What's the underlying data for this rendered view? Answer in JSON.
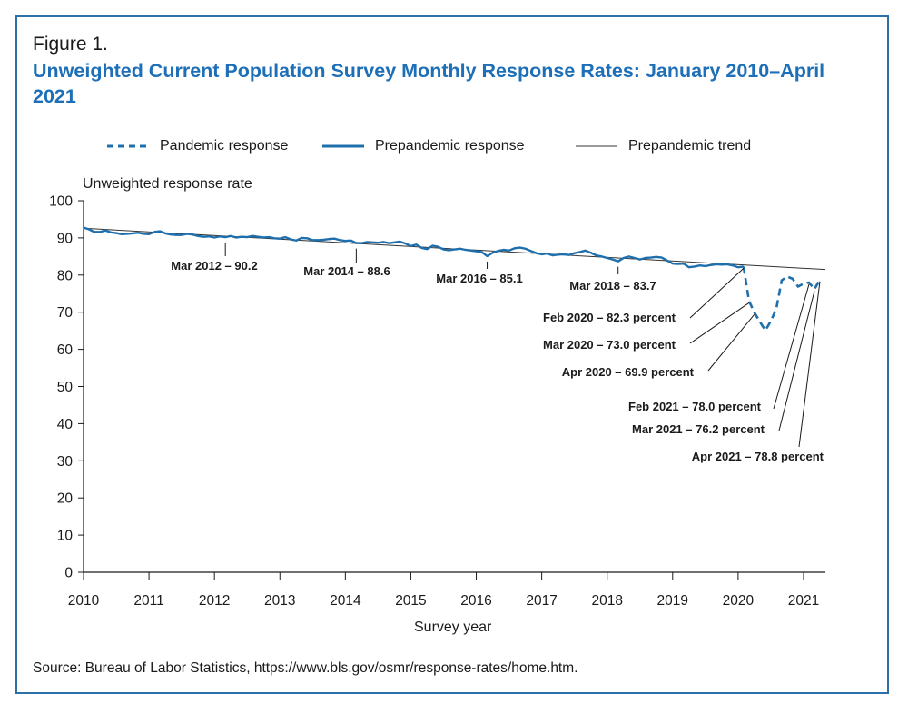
{
  "figure_label": "Figure 1.",
  "title": "Unweighted Current Population Survey Monthly Response Rates: January 2010–April 2021",
  "ylabel": "Unweighted response rate",
  "xlabel": "Survey year",
  "source": "Source: Bureau of Labor Statistics, https://www.bls.gov/osmr/response-rates/home.htm.",
  "colors": {
    "series": "#1f6fad",
    "trend": "#333333",
    "axis": "#1a1a1a",
    "title": "#1d6fb8",
    "frame": "#2d6fa7"
  },
  "chart_data": {
    "type": "line",
    "ylim": [
      0,
      100
    ],
    "xlim": [
      "2010-01",
      "2021-05"
    ],
    "y_ticks": [
      "0",
      "10",
      "20",
      "30",
      "40",
      "50",
      "60",
      "70",
      "80",
      "90",
      "100"
    ],
    "x_ticks": [
      "2010",
      "2011",
      "2012",
      "2013",
      "2014",
      "2015",
      "2016",
      "2017",
      "2018",
      "2019",
      "2020",
      "2021"
    ],
    "legend": {
      "placement": "top",
      "entries": [
        "Pandemic response",
        "Prepandemic response",
        "Prepandemic trend"
      ]
    },
    "series": [
      {
        "name": "Prepandemic response",
        "style": "solid",
        "x": [
          "2010-01",
          "2010-02",
          "2010-03",
          "2010-04",
          "2010-05",
          "2010-06",
          "2010-07",
          "2010-08",
          "2010-09",
          "2010-10",
          "2010-11",
          "2010-12",
          "2011-01",
          "2011-02",
          "2011-03",
          "2011-04",
          "2011-05",
          "2011-06",
          "2011-07",
          "2011-08",
          "2011-09",
          "2011-10",
          "2011-11",
          "2011-12",
          "2012-01",
          "2012-02",
          "2012-03",
          "2012-04",
          "2012-05",
          "2012-06",
          "2012-07",
          "2012-08",
          "2012-09",
          "2012-10",
          "2012-11",
          "2012-12",
          "2013-01",
          "2013-02",
          "2013-03",
          "2013-04",
          "2013-05",
          "2013-06",
          "2013-07",
          "2013-08",
          "2013-09",
          "2013-10",
          "2013-11",
          "2013-12",
          "2014-01",
          "2014-02",
          "2014-03",
          "2014-04",
          "2014-05",
          "2014-06",
          "2014-07",
          "2014-08",
          "2014-09",
          "2014-10",
          "2014-11",
          "2014-12",
          "2015-01",
          "2015-02",
          "2015-03",
          "2015-04",
          "2015-05",
          "2015-06",
          "2015-07",
          "2015-08",
          "2015-09",
          "2015-10",
          "2015-11",
          "2015-12",
          "2016-01",
          "2016-02",
          "2016-03",
          "2016-04",
          "2016-05",
          "2016-06",
          "2016-07",
          "2016-08",
          "2016-09",
          "2016-10",
          "2016-11",
          "2016-12",
          "2017-01",
          "2017-02",
          "2017-03",
          "2017-04",
          "2017-05",
          "2017-06",
          "2017-07",
          "2017-08",
          "2017-09",
          "2017-10",
          "2017-11",
          "2017-12",
          "2018-01",
          "2018-02",
          "2018-03",
          "2018-04",
          "2018-05",
          "2018-06",
          "2018-07",
          "2018-08",
          "2018-09",
          "2018-10",
          "2018-11",
          "2018-12",
          "2019-01",
          "2019-02",
          "2019-03",
          "2019-04",
          "2019-05",
          "2019-06",
          "2019-07",
          "2019-08",
          "2019-09",
          "2019-10",
          "2019-11",
          "2019-12",
          "2020-01",
          "2020-02"
        ],
        "y": [
          92.8,
          92.3,
          91.6,
          91.6,
          92.0,
          91.5,
          91.3,
          91.0,
          91.1,
          91.2,
          91.4,
          91.1,
          91.0,
          91.6,
          91.8,
          91.2,
          90.9,
          90.8,
          90.8,
          91.1,
          90.9,
          90.5,
          90.3,
          90.4,
          90.1,
          90.4,
          90.2,
          90.5,
          90.1,
          90.3,
          90.2,
          90.5,
          90.3,
          90.1,
          90.2,
          89.9,
          89.8,
          90.2,
          89.6,
          89.3,
          90.0,
          89.9,
          89.4,
          89.4,
          89.5,
          89.7,
          89.8,
          89.4,
          89.2,
          89.3,
          88.6,
          88.6,
          88.9,
          88.8,
          88.7,
          88.9,
          88.6,
          88.8,
          89.0,
          88.5,
          87.8,
          88.2,
          87.3,
          87.0,
          87.9,
          87.6,
          86.9,
          86.7,
          86.9,
          87.1,
          86.8,
          86.6,
          86.4,
          86.2,
          85.1,
          86.0,
          86.5,
          86.8,
          86.6,
          87.2,
          87.4,
          87.1,
          86.5,
          85.9,
          85.6,
          85.8,
          85.3,
          85.5,
          85.6,
          85.4,
          85.9,
          86.2,
          86.6,
          86.0,
          85.3,
          85.0,
          84.6,
          84.2,
          83.7,
          84.6,
          85.0,
          84.6,
          84.2,
          84.6,
          84.7,
          84.9,
          84.7,
          83.9,
          83.1,
          83.0,
          83.1,
          82.1,
          82.3,
          82.6,
          82.4,
          82.7,
          82.9,
          82.8,
          82.9,
          82.6,
          82.1,
          82.3
        ]
      },
      {
        "name": "Pandemic response",
        "style": "dashed",
        "x": [
          "2020-02",
          "2020-03",
          "2020-04",
          "2020-05",
          "2020-06",
          "2020-07",
          "2020-08",
          "2020-09",
          "2020-10",
          "2020-11",
          "2020-12",
          "2021-01",
          "2021-02",
          "2021-03",
          "2021-04"
        ],
        "y": [
          82.3,
          73.0,
          69.9,
          67.4,
          65.1,
          67.6,
          70.9,
          78.6,
          79.6,
          79.0,
          76.9,
          77.7,
          78.0,
          76.2,
          78.8
        ]
      },
      {
        "name": "Prepandemic trend",
        "style": "thin",
        "x": [
          "2010-01",
          "2021-05"
        ],
        "y": [
          92.6,
          81.5
        ]
      }
    ],
    "annotations": [
      {
        "text": "Mar 2012 – 90.2",
        "x": "2012-03",
        "y": 90.2
      },
      {
        "text": "Mar 2014 – 88.6",
        "x": "2014-03",
        "y": 88.6
      },
      {
        "text": "Mar 2016 – 85.1",
        "x": "2016-03",
        "y": 85.1
      },
      {
        "text": "Mar 2018 – 83.7",
        "x": "2018-03",
        "y": 83.7
      },
      {
        "text": "Feb 2020 – 82.3 percent",
        "x": "2020-02",
        "y": 82.3
      },
      {
        "text": "Mar 2020 – 73.0 percent",
        "x": "2020-03",
        "y": 73.0
      },
      {
        "text": "Apr 2020 – 69.9 percent",
        "x": "2020-04",
        "y": 69.9
      },
      {
        "text": "Feb 2021 – 78.0 percent",
        "x": "2021-02",
        "y": 78.0
      },
      {
        "text": "Mar 2021 – 76.2 percent",
        "x": "2021-03",
        "y": 76.2
      },
      {
        "text": "Apr 2021 – 78.8 percent",
        "x": "2021-04",
        "y": 78.8
      }
    ]
  }
}
